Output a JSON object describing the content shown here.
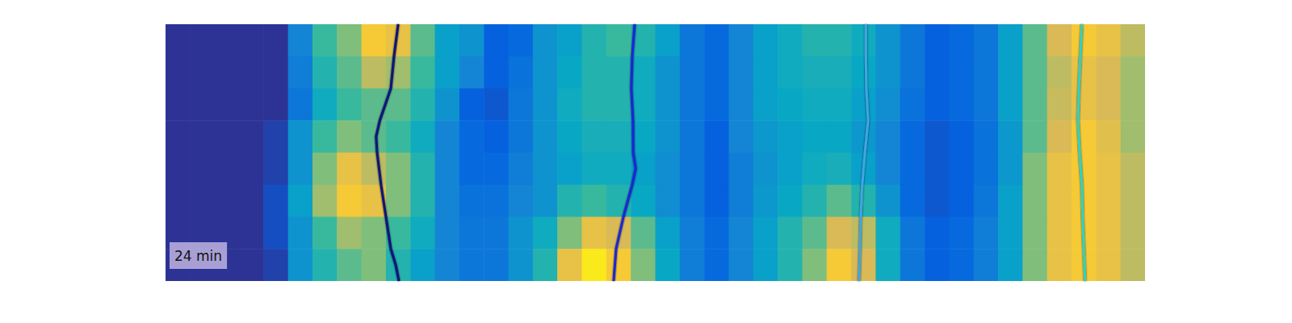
{
  "chart_data": {
    "type": "heatmap",
    "annotation": "24 min",
    "tick_labels": false,
    "grid": false,
    "xlim": [
      0,
      40
    ],
    "ylim": [
      0,
      8
    ],
    "clim": [
      0,
      1
    ],
    "cells": [
      [
        0.02,
        0.02,
        0.02,
        0.02,
        0.02,
        0.25,
        0.5,
        0.6,
        0.85,
        0.8,
        0.55,
        0.35,
        0.3,
        0.12,
        0.15,
        0.3,
        0.35,
        0.45,
        0.5,
        0.45,
        0.35,
        0.2,
        0.15,
        0.25,
        0.35,
        0.4,
        0.45,
        0.45,
        0.4,
        0.3,
        0.2,
        0.12,
        0.15,
        0.2,
        0.35,
        0.55,
        0.75,
        0.85,
        0.8,
        0.7
      ],
      [
        0.02,
        0.02,
        0.02,
        0.02,
        0.02,
        0.22,
        0.45,
        0.55,
        0.7,
        0.65,
        0.5,
        0.35,
        0.25,
        0.12,
        0.18,
        0.3,
        0.38,
        0.45,
        0.45,
        0.4,
        0.3,
        0.2,
        0.15,
        0.25,
        0.35,
        0.4,
        0.42,
        0.42,
        0.38,
        0.3,
        0.2,
        0.12,
        0.15,
        0.2,
        0.35,
        0.55,
        0.7,
        0.8,
        0.75,
        0.65
      ],
      [
        0.02,
        0.02,
        0.02,
        0.02,
        0.02,
        0.2,
        0.4,
        0.5,
        0.55,
        0.55,
        0.45,
        0.3,
        0.12,
        0.1,
        0.2,
        0.3,
        0.4,
        0.45,
        0.45,
        0.4,
        0.3,
        0.2,
        0.15,
        0.25,
        0.35,
        0.38,
        0.4,
        0.4,
        0.35,
        0.28,
        0.18,
        0.12,
        0.15,
        0.2,
        0.35,
        0.55,
        0.72,
        0.8,
        0.75,
        0.65
      ],
      [
        0.02,
        0.02,
        0.02,
        0.02,
        0.05,
        0.3,
        0.5,
        0.6,
        0.55,
        0.5,
        0.4,
        0.25,
        0.15,
        0.12,
        0.2,
        0.3,
        0.38,
        0.42,
        0.42,
        0.38,
        0.3,
        0.2,
        0.12,
        0.25,
        0.32,
        0.35,
        0.38,
        0.38,
        0.32,
        0.25,
        0.15,
        0.1,
        0.12,
        0.18,
        0.32,
        0.55,
        0.75,
        0.85,
        0.78,
        0.65
      ],
      [
        0.02,
        0.02,
        0.02,
        0.02,
        0.05,
        0.3,
        0.6,
        0.8,
        0.7,
        0.6,
        0.45,
        0.25,
        0.15,
        0.15,
        0.22,
        0.3,
        0.35,
        0.4,
        0.4,
        0.35,
        0.28,
        0.2,
        0.12,
        0.22,
        0.3,
        0.35,
        0.4,
        0.42,
        0.35,
        0.25,
        0.15,
        0.1,
        0.12,
        0.18,
        0.32,
        0.6,
        0.8,
        0.85,
        0.8,
        0.7
      ],
      [
        0.02,
        0.02,
        0.02,
        0.02,
        0.08,
        0.35,
        0.65,
        0.85,
        0.8,
        0.6,
        0.45,
        0.25,
        0.18,
        0.18,
        0.25,
        0.3,
        0.45,
        0.5,
        0.45,
        0.38,
        0.28,
        0.2,
        0.12,
        0.22,
        0.32,
        0.38,
        0.45,
        0.55,
        0.45,
        0.3,
        0.15,
        0.1,
        0.12,
        0.2,
        0.35,
        0.6,
        0.8,
        0.85,
        0.8,
        0.7
      ],
      [
        0.02,
        0.02,
        0.02,
        0.02,
        0.08,
        0.3,
        0.5,
        0.65,
        0.6,
        0.5,
        0.4,
        0.25,
        0.2,
        0.2,
        0.3,
        0.4,
        0.6,
        0.8,
        0.75,
        0.55,
        0.35,
        0.22,
        0.15,
        0.25,
        0.35,
        0.45,
        0.55,
        0.75,
        0.7,
        0.4,
        0.2,
        0.12,
        0.15,
        0.22,
        0.35,
        0.6,
        0.8,
        0.85,
        0.8,
        0.7
      ],
      [
        0.02,
        0.02,
        0.02,
        0.02,
        0.05,
        0.3,
        0.45,
        0.55,
        0.6,
        0.45,
        0.35,
        0.25,
        0.2,
        0.2,
        0.3,
        0.45,
        0.8,
        0.95,
        0.85,
        0.6,
        0.38,
        0.22,
        0.15,
        0.25,
        0.35,
        0.45,
        0.6,
        0.85,
        0.75,
        0.4,
        0.2,
        0.12,
        0.15,
        0.22,
        0.35,
        0.6,
        0.8,
        0.85,
        0.8,
        0.7
      ]
    ],
    "series": [
      {
        "type": "line",
        "color": "#10127a",
        "x": [
          9.5,
          9.33,
          9.2,
          8.75,
          8.6,
          8.64,
          8.8,
          9.0,
          9.2,
          9.4,
          9.53
        ],
        "y": [
          0,
          1,
          2,
          3,
          3.5,
          4,
          5,
          6,
          7,
          7.5,
          8
        ]
      },
      {
        "type": "line",
        "color": "#1a26d8",
        "x": [
          19.16,
          19.06,
          19.02,
          19.09,
          19.1,
          19.2,
          19.06,
          18.7,
          18.4,
          18.3
        ],
        "y": [
          0,
          1,
          2,
          3,
          4,
          4.5,
          5,
          6,
          7,
          8
        ]
      },
      {
        "type": "line",
        "color": "#3fa6e2",
        "x": [
          28.6,
          28.6,
          28.62,
          28.69,
          28.56,
          28.45,
          28.39,
          28.36,
          28.32
        ],
        "y": [
          0,
          1,
          2,
          3,
          4,
          5,
          6,
          7,
          8
        ]
      },
      {
        "type": "line",
        "color": "#2fd3c4",
        "x": [
          37.42,
          37.36,
          37.3,
          37.26,
          37.33,
          37.42,
          37.45,
          37.5,
          37.55
        ],
        "y": [
          0,
          1,
          2,
          3,
          4,
          5,
          6,
          7,
          8
        ]
      }
    ]
  }
}
